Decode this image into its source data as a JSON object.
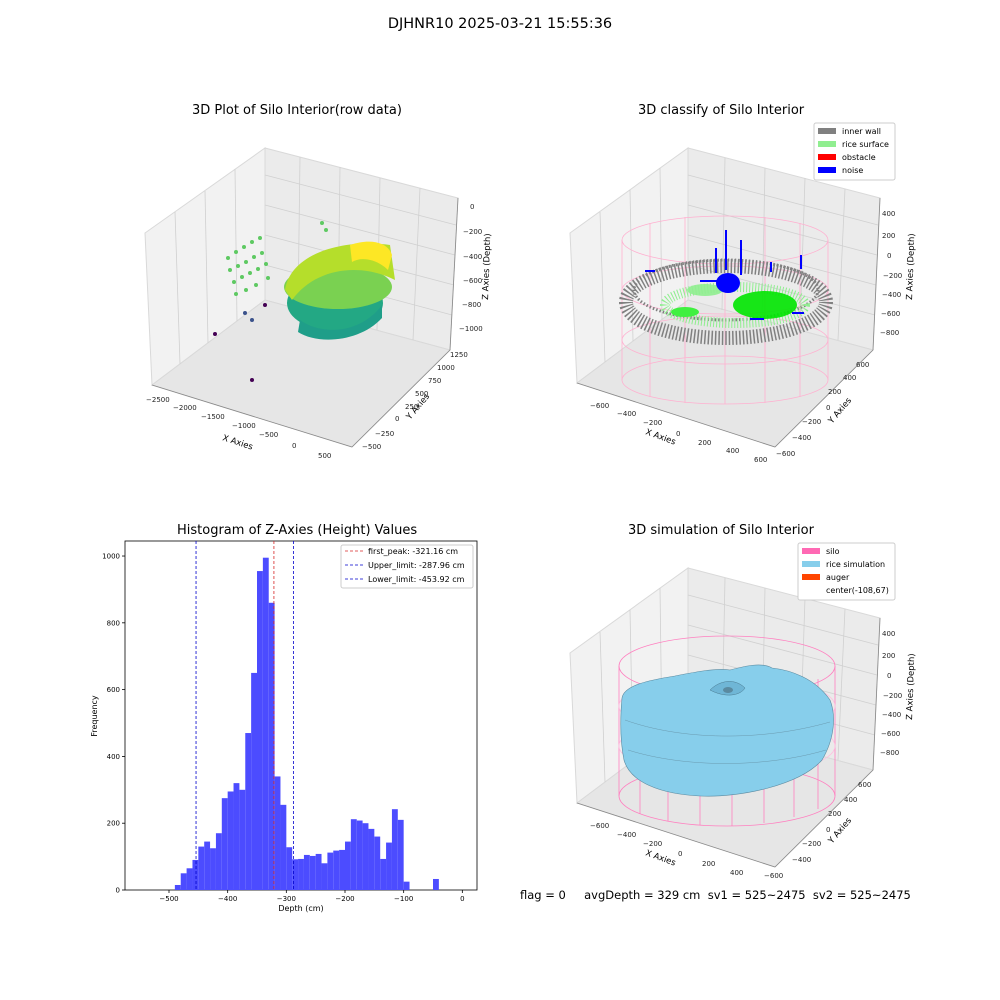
{
  "figure": {
    "suptitle": "DJHNR10 2025-03-21 15:55:36",
    "status_line": "flag = 0     avgDepth = 329 cm  sv1 = 525~2475  sv2 = 525~2475"
  },
  "colors": {
    "histogram_bar": "#4c4cff",
    "first_peak_line": "#d62728",
    "limit_line": "#0000cc",
    "inner_wall": "#808080",
    "rice_surface": "#90ee90",
    "obstacle": "#ff0000",
    "noise": "#0000ff",
    "silo": "#ff69b4",
    "rice_simulation": "#87ceeb",
    "auger": "#ff4500"
  },
  "chart_data": [
    {
      "type": "scatter",
      "title": "3D Plot of Silo Interior(row data)",
      "xlabel": "X Axies",
      "ylabel": "Y Axies",
      "zlabel": "Z Axies (Depth)",
      "x_ticks": [
        "−2500",
        "−2000",
        "−1500",
        "−1000",
        "−500",
        "0",
        "500"
      ],
      "y_ticks": [
        "−500",
        "−250",
        "0",
        "250",
        "500",
        "750",
        "1000",
        "1250"
      ],
      "z_ticks": [
        "0",
        "−200",
        "−400",
        "−600",
        "−800",
        "−1000"
      ]
    },
    {
      "type": "scatter",
      "title": "3D classify of Silo Interior",
      "xlabel": "X Axies",
      "ylabel": "Y Axies",
      "zlabel": "Z Axies (Depth)",
      "x_ticks": [
        "−600",
        "−400",
        "−200",
        "0",
        "200",
        "400",
        "600"
      ],
      "y_ticks": [
        "−600",
        "−400",
        "−200",
        "0",
        "200",
        "400",
        "600"
      ],
      "z_ticks": [
        "400",
        "200",
        "0",
        "−200",
        "−400",
        "−600",
        "−800"
      ],
      "legend": [
        "inner wall",
        "rice surface",
        "obstacle",
        "noise"
      ],
      "legend_position": "top-right"
    },
    {
      "type": "bar",
      "title": "Histogram of Z-Axies (Height) Values",
      "xlabel": "Depth (cm)",
      "ylabel": "Frequency",
      "xlim": [
        -575,
        25
      ],
      "ylim": [
        0,
        1045
      ],
      "x_ticks": [
        -500,
        -400,
        -300,
        -200,
        -100,
        0
      ],
      "y_ticks": [
        0,
        200,
        400,
        600,
        800,
        1000
      ],
      "bin_width": 10,
      "bin_starts": [
        -490,
        -480,
        -470,
        -460,
        -450,
        -440,
        -430,
        -420,
        -410,
        -400,
        -390,
        -380,
        -370,
        -360,
        -350,
        -340,
        -330,
        -320,
        -310,
        -300,
        -290,
        -280,
        -270,
        -260,
        -250,
        -240,
        -230,
        -220,
        -210,
        -200,
        -190,
        -180,
        -170,
        -160,
        -150,
        -140,
        -130,
        -120,
        -110,
        -100,
        -90,
        -80,
        -70,
        -60,
        -50,
        -40,
        -30,
        -20,
        -10,
        0
      ],
      "values": [
        15,
        50,
        65,
        90,
        130,
        145,
        125,
        170,
        275,
        295,
        320,
        300,
        470,
        650,
        955,
        995,
        860,
        340,
        255,
        128,
        92,
        93,
        105,
        102,
        108,
        80,
        112,
        118,
        120,
        145,
        212,
        208,
        200,
        183,
        160,
        93,
        142,
        242,
        210,
        25,
        0,
        0,
        0,
        0,
        33,
        0,
        0,
        0,
        0,
        0
      ],
      "vlines": [
        {
          "label": "first_peak: -321.16 cm",
          "x": -321.16,
          "color": "#d62728"
        },
        {
          "label": "Upper_limit: -287.96 cm",
          "x": -287.96,
          "color": "#0000cc"
        },
        {
          "label": "Lower_limit: -453.92 cm",
          "x": -453.92,
          "color": "#0000cc"
        }
      ],
      "legend_position": "top-right"
    },
    {
      "type": "area",
      "title": "3D simulation of Silo Interior",
      "xlabel": "X Axies",
      "ylabel": "Y Axies",
      "zlabel": "Z Axies (Depth)",
      "x_ticks": [
        "−600",
        "−400",
        "−200",
        "0",
        "200",
        "400"
      ],
      "y_ticks": [
        "−600",
        "−400",
        "−200",
        "0",
        "200",
        "400",
        "600"
      ],
      "z_ticks": [
        "400",
        "200",
        "0",
        "−200",
        "−400",
        "−600",
        "−800"
      ],
      "legend": [
        "silo",
        "rice simulation",
        "auger",
        "center(-108,67)"
      ],
      "legend_position": "top-right"
    }
  ]
}
